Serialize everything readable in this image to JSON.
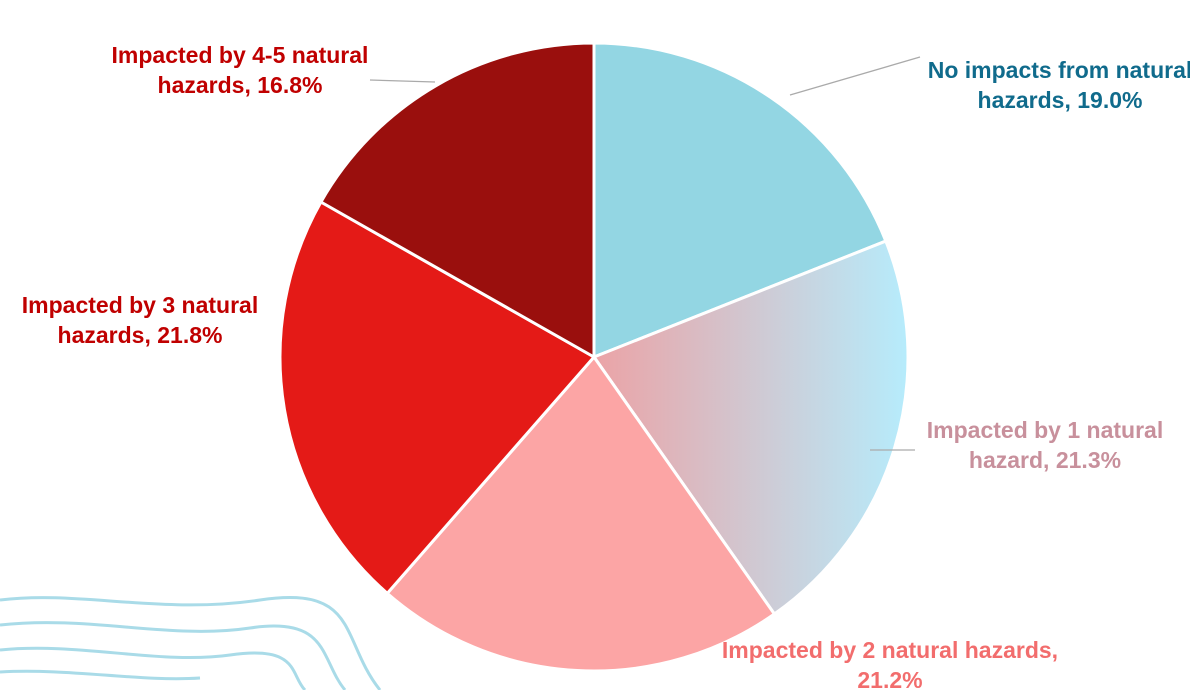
{
  "chart_data": {
    "type": "pie",
    "categories": [
      "No impacts from natural hazards,",
      "Impacted by 1 natural hazard,",
      "Impacted by 2 natural hazards,",
      "Impacted by 3 natural hazards,",
      "Impacted by 4-5 natural hazards,"
    ],
    "values": [
      19.0,
      21.3,
      21.2,
      21.8,
      16.8
    ],
    "value_labels": [
      "19.0%",
      "21.3%",
      "21.2%",
      "21.8%",
      "16.8%"
    ],
    "colors": [
      "#93d6e3",
      "#d8b4bd",
      "#fca5a5",
      "#e41a17",
      "#9a0f0d"
    ],
    "label_colors": [
      "#106b8c",
      "#c8909c",
      "#f26d6d",
      "#c00000",
      "#c00000"
    ]
  }
}
